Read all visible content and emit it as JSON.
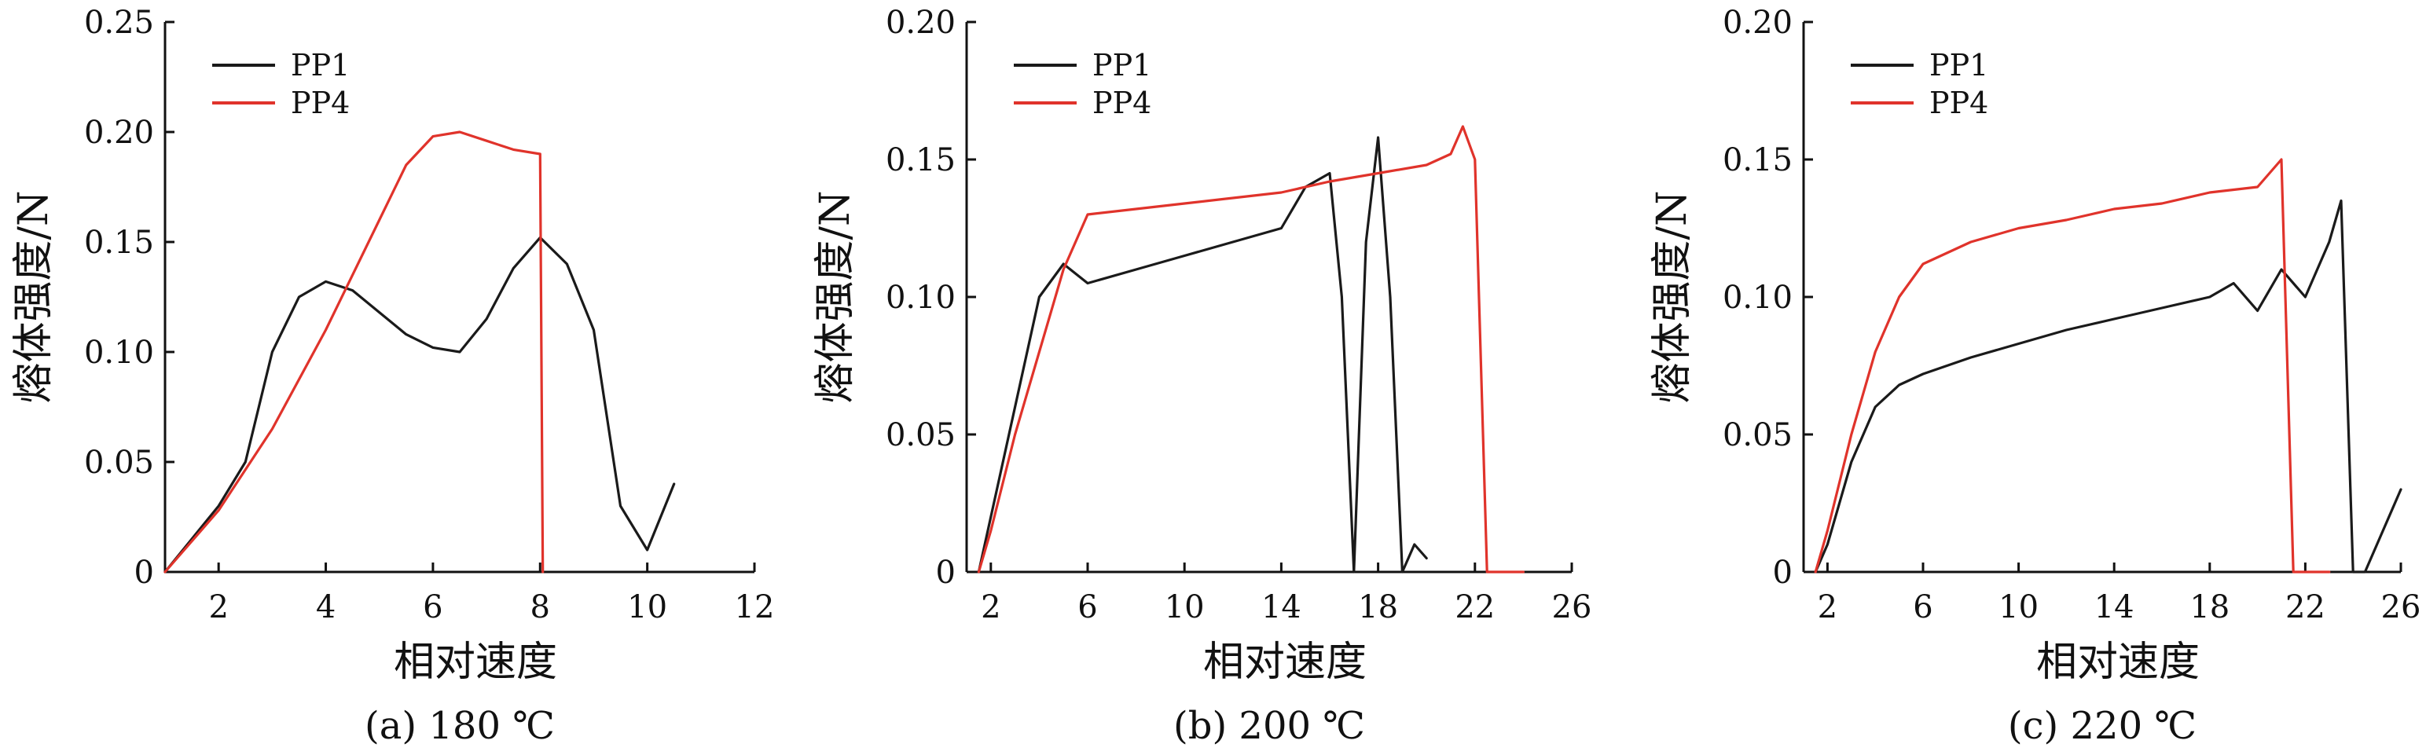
{
  "colors": {
    "PP1": "#1a1a1a",
    "PP4": "#e0332b"
  },
  "chart_data": [
    {
      "type": "line",
      "caption": "(a) 180 ℃",
      "xlabel": "相对速度",
      "ylabel": "熔体强度/N",
      "xlim": [
        1,
        12
      ],
      "ylim": [
        0,
        0.25
      ],
      "xticks": [
        2,
        4,
        6,
        8,
        10,
        12
      ],
      "yticks": [
        0,
        0.05,
        0.1,
        0.15,
        0.2,
        0.25
      ],
      "ytick_labels": [
        "0",
        "0.05",
        "0.10",
        "0.15",
        "0.20",
        "0.25"
      ],
      "legend": [
        "PP1",
        "PP4"
      ],
      "legend_position": "top-left",
      "series": [
        {
          "name": "PP1",
          "x": [
            1,
            1.5,
            2,
            2.5,
            3,
            3.5,
            4,
            4.5,
            5,
            5.5,
            6,
            6.5,
            7,
            7.5,
            8,
            8.5,
            9,
            9.5,
            10,
            10.5
          ],
          "y": [
            0.0,
            0.015,
            0.03,
            0.05,
            0.1,
            0.125,
            0.132,
            0.128,
            0.118,
            0.108,
            0.102,
            0.1,
            0.115,
            0.138,
            0.152,
            0.14,
            0.11,
            0.03,
            0.01,
            0.04
          ]
        },
        {
          "name": "PP4",
          "x": [
            1,
            2,
            3,
            4,
            5,
            5.5,
            6,
            6.5,
            7,
            7.5,
            8,
            8.05
          ],
          "y": [
            0.0,
            0.028,
            0.065,
            0.11,
            0.16,
            0.185,
            0.198,
            0.2,
            0.196,
            0.192,
            0.19,
            0.0
          ]
        }
      ]
    },
    {
      "type": "line",
      "caption": "(b) 200 ℃",
      "xlabel": "相对速度",
      "ylabel": "熔体强度/N",
      "xlim": [
        1,
        26
      ],
      "ylim": [
        0,
        0.2
      ],
      "xticks": [
        2,
        6,
        10,
        14,
        18,
        22,
        26
      ],
      "yticks": [
        0,
        0.05,
        0.1,
        0.15,
        0.2
      ],
      "ytick_labels": [
        "0",
        "0.05",
        "0.10",
        "0.15",
        "0.20"
      ],
      "legend": [
        "PP1",
        "PP4"
      ],
      "legend_position": "top-left",
      "series": [
        {
          "name": "PP1",
          "x": [
            1.5,
            2,
            3,
            4,
            5,
            6,
            8,
            10,
            12,
            14,
            15,
            16,
            16.5,
            17,
            17.5,
            18,
            18.5,
            19,
            19.5,
            20
          ],
          "y": [
            0.0,
            0.02,
            0.06,
            0.1,
            0.112,
            0.105,
            0.11,
            0.115,
            0.12,
            0.125,
            0.14,
            0.145,
            0.1,
            0.0,
            0.12,
            0.158,
            0.1,
            0.0,
            0.01,
            0.005
          ]
        },
        {
          "name": "PP4",
          "x": [
            1.5,
            2,
            3,
            4,
            5,
            6,
            8,
            10,
            12,
            14,
            16,
            18,
            20,
            21,
            21.5,
            22,
            22.5,
            23,
            24
          ],
          "y": [
            0.0,
            0.015,
            0.05,
            0.08,
            0.11,
            0.13,
            0.132,
            0.134,
            0.136,
            0.138,
            0.142,
            0.145,
            0.148,
            0.152,
            0.162,
            0.15,
            0.0,
            0.0,
            0.0
          ]
        }
      ]
    },
    {
      "type": "line",
      "caption": "(c) 220 ℃",
      "xlabel": "相对速度",
      "ylabel": "熔体强度/N",
      "xlim": [
        1,
        26
      ],
      "ylim": [
        0,
        0.2
      ],
      "xticks": [
        2,
        6,
        10,
        14,
        18,
        22,
        26
      ],
      "yticks": [
        0,
        0.05,
        0.1,
        0.15,
        0.2
      ],
      "ytick_labels": [
        "0",
        "0.05",
        "0.10",
        "0.15",
        "0.20"
      ],
      "legend": [
        "PP1",
        "PP4"
      ],
      "legend_position": "top-left",
      "series": [
        {
          "name": "PP1",
          "x": [
            1.5,
            2,
            3,
            4,
            5,
            6,
            8,
            10,
            12,
            14,
            16,
            18,
            19,
            20,
            21,
            22,
            23,
            23.5,
            24,
            24.5,
            25,
            26
          ],
          "y": [
            0.0,
            0.01,
            0.04,
            0.06,
            0.068,
            0.072,
            0.078,
            0.083,
            0.088,
            0.092,
            0.096,
            0.1,
            0.105,
            0.095,
            0.11,
            0.1,
            0.12,
            0.135,
            0.0,
            0.0,
            0.01,
            0.03
          ]
        },
        {
          "name": "PP4",
          "x": [
            1.5,
            2,
            3,
            4,
            5,
            6,
            8,
            10,
            12,
            14,
            16,
            18,
            20,
            21,
            21.5,
            22,
            23
          ],
          "y": [
            0.0,
            0.015,
            0.05,
            0.08,
            0.1,
            0.112,
            0.12,
            0.125,
            0.128,
            0.132,
            0.134,
            0.138,
            0.14,
            0.15,
            0.0,
            0.0,
            0.0
          ]
        }
      ]
    }
  ]
}
